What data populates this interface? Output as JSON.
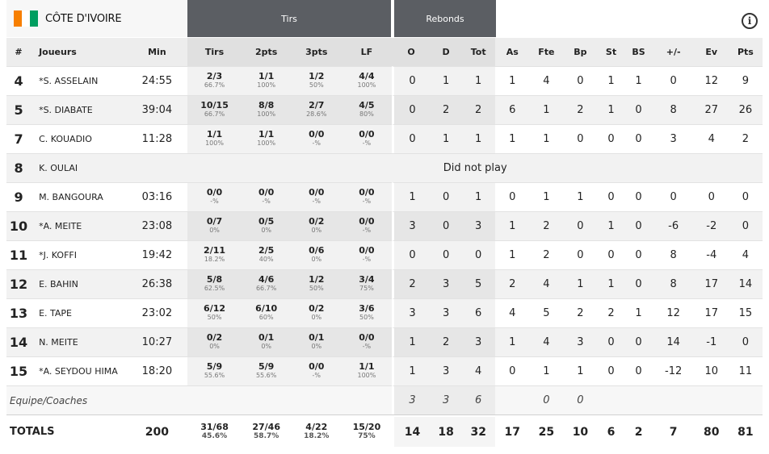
{
  "team": {
    "name": "CÔTE D'IVOIRE",
    "flag_colors": [
      "#f77f00",
      "#ffffff",
      "#009e60"
    ]
  },
  "groups": {
    "shots": "Tirs",
    "rebounds": "Rebonds"
  },
  "info_icon": "info-icon",
  "columns": [
    "#",
    "Joueurs",
    "Min",
    "Tirs",
    "2pts",
    "3pts",
    "LF",
    "O",
    "D",
    "Tot",
    "As",
    "Fte",
    "Bp",
    "St",
    "BS",
    "+/-",
    "Ev",
    "Pts"
  ],
  "players": [
    {
      "num": "4",
      "name": "*S. ASSELAIN",
      "min": "24:55",
      "fg": "2/3",
      "fg_pct": "66.7%",
      "p2": "1/1",
      "p2_pct": "100%",
      "p3": "1/2",
      "p3_pct": "50%",
      "ft": "4/4",
      "ft_pct": "100%",
      "o": "0",
      "d": "1",
      "tot": "1",
      "as": "1",
      "fte": "4",
      "bp": "0",
      "st": "1",
      "bs": "1",
      "pm": "0",
      "ev": "12",
      "pts": "9"
    },
    {
      "num": "5",
      "name": "*S. DIABATE",
      "min": "39:04",
      "fg": "10/15",
      "fg_pct": "66.7%",
      "p2": "8/8",
      "p2_pct": "100%",
      "p3": "2/7",
      "p3_pct": "28.6%",
      "ft": "4/5",
      "ft_pct": "80%",
      "o": "0",
      "d": "2",
      "tot": "2",
      "as": "6",
      "fte": "1",
      "bp": "2",
      "st": "1",
      "bs": "0",
      "pm": "8",
      "ev": "27",
      "pts": "26"
    },
    {
      "num": "7",
      "name": "C. KOUADIO",
      "min": "11:28",
      "fg": "1/1",
      "fg_pct": "100%",
      "p2": "1/1",
      "p2_pct": "100%",
      "p3": "0/0",
      "p3_pct": "-%",
      "ft": "0/0",
      "ft_pct": "-%",
      "o": "0",
      "d": "1",
      "tot": "1",
      "as": "1",
      "fte": "1",
      "bp": "0",
      "st": "0",
      "bs": "0",
      "pm": "3",
      "ev": "4",
      "pts": "2"
    },
    {
      "num": "8",
      "name": "K. OULAI",
      "dnp": "Did not play"
    },
    {
      "num": "9",
      "name": "M. BANGOURA",
      "min": "03:16",
      "fg": "0/0",
      "fg_pct": "-%",
      "p2": "0/0",
      "p2_pct": "-%",
      "p3": "0/0",
      "p3_pct": "-%",
      "ft": "0/0",
      "ft_pct": "-%",
      "o": "1",
      "d": "0",
      "tot": "1",
      "as": "0",
      "fte": "1",
      "bp": "1",
      "st": "0",
      "bs": "0",
      "pm": "0",
      "ev": "0",
      "pts": "0"
    },
    {
      "num": "10",
      "name": "*A. MEITE",
      "min": "23:08",
      "fg": "0/7",
      "fg_pct": "0%",
      "p2": "0/5",
      "p2_pct": "0%",
      "p3": "0/2",
      "p3_pct": "0%",
      "ft": "0/0",
      "ft_pct": "-%",
      "o": "3",
      "d": "0",
      "tot": "3",
      "as": "1",
      "fte": "2",
      "bp": "0",
      "st": "1",
      "bs": "0",
      "pm": "-6",
      "ev": "-2",
      "pts": "0"
    },
    {
      "num": "11",
      "name": "*J. KOFFI",
      "min": "19:42",
      "fg": "2/11",
      "fg_pct": "18.2%",
      "p2": "2/5",
      "p2_pct": "40%",
      "p3": "0/6",
      "p3_pct": "0%",
      "ft": "0/0",
      "ft_pct": "-%",
      "o": "0",
      "d": "0",
      "tot": "0",
      "as": "1",
      "fte": "2",
      "bp": "0",
      "st": "0",
      "bs": "0",
      "pm": "8",
      "ev": "-4",
      "pts": "4"
    },
    {
      "num": "12",
      "name": "E. BAHIN",
      "min": "26:38",
      "fg": "5/8",
      "fg_pct": "62.5%",
      "p2": "4/6",
      "p2_pct": "66.7%",
      "p3": "1/2",
      "p3_pct": "50%",
      "ft": "3/4",
      "ft_pct": "75%",
      "o": "2",
      "d": "3",
      "tot": "5",
      "as": "2",
      "fte": "4",
      "bp": "1",
      "st": "1",
      "bs": "0",
      "pm": "8",
      "ev": "17",
      "pts": "14"
    },
    {
      "num": "13",
      "name": "E. TAPE",
      "min": "23:02",
      "fg": "6/12",
      "fg_pct": "50%",
      "p2": "6/10",
      "p2_pct": "60%",
      "p3": "0/2",
      "p3_pct": "0%",
      "ft": "3/6",
      "ft_pct": "50%",
      "o": "3",
      "d": "3",
      "tot": "6",
      "as": "4",
      "fte": "5",
      "bp": "2",
      "st": "2",
      "bs": "1",
      "pm": "12",
      "ev": "17",
      "pts": "15"
    },
    {
      "num": "14",
      "name": "N. MEITE",
      "min": "10:27",
      "fg": "0/2",
      "fg_pct": "0%",
      "p2": "0/1",
      "p2_pct": "0%",
      "p3": "0/1",
      "p3_pct": "0%",
      "ft": "0/0",
      "ft_pct": "-%",
      "o": "1",
      "d": "2",
      "tot": "3",
      "as": "1",
      "fte": "4",
      "bp": "3",
      "st": "0",
      "bs": "0",
      "pm": "14",
      "ev": "-1",
      "pts": "0"
    },
    {
      "num": "15",
      "name": "*A. SEYDOU HIMA",
      "min": "18:20",
      "fg": "5/9",
      "fg_pct": "55.6%",
      "p2": "5/9",
      "p2_pct": "55.6%",
      "p3": "0/0",
      "p3_pct": "-%",
      "ft": "1/1",
      "ft_pct": "100%",
      "o": "1",
      "d": "3",
      "tot": "4",
      "as": "0",
      "fte": "1",
      "bp": "1",
      "st": "0",
      "bs": "0",
      "pm": "-12",
      "ev": "10",
      "pts": "11"
    }
  ],
  "coaches": {
    "label": "Equipe/Coaches",
    "o": "3",
    "d": "3",
    "tot": "6",
    "fte": "0",
    "bp": "0"
  },
  "totals": {
    "label": "TOTALS",
    "min": "200",
    "fg": "31/68",
    "fg_pct": "45.6%",
    "p2": "27/46",
    "p2_pct": "58.7%",
    "p3": "4/22",
    "p3_pct": "18.2%",
    "ft": "15/20",
    "ft_pct": "75%",
    "o": "14",
    "d": "18",
    "tot": "32",
    "as": "17",
    "fte": "25",
    "bp": "10",
    "st": "6",
    "bs": "2",
    "pm": "7",
    "ev": "80",
    "pts": "81"
  }
}
